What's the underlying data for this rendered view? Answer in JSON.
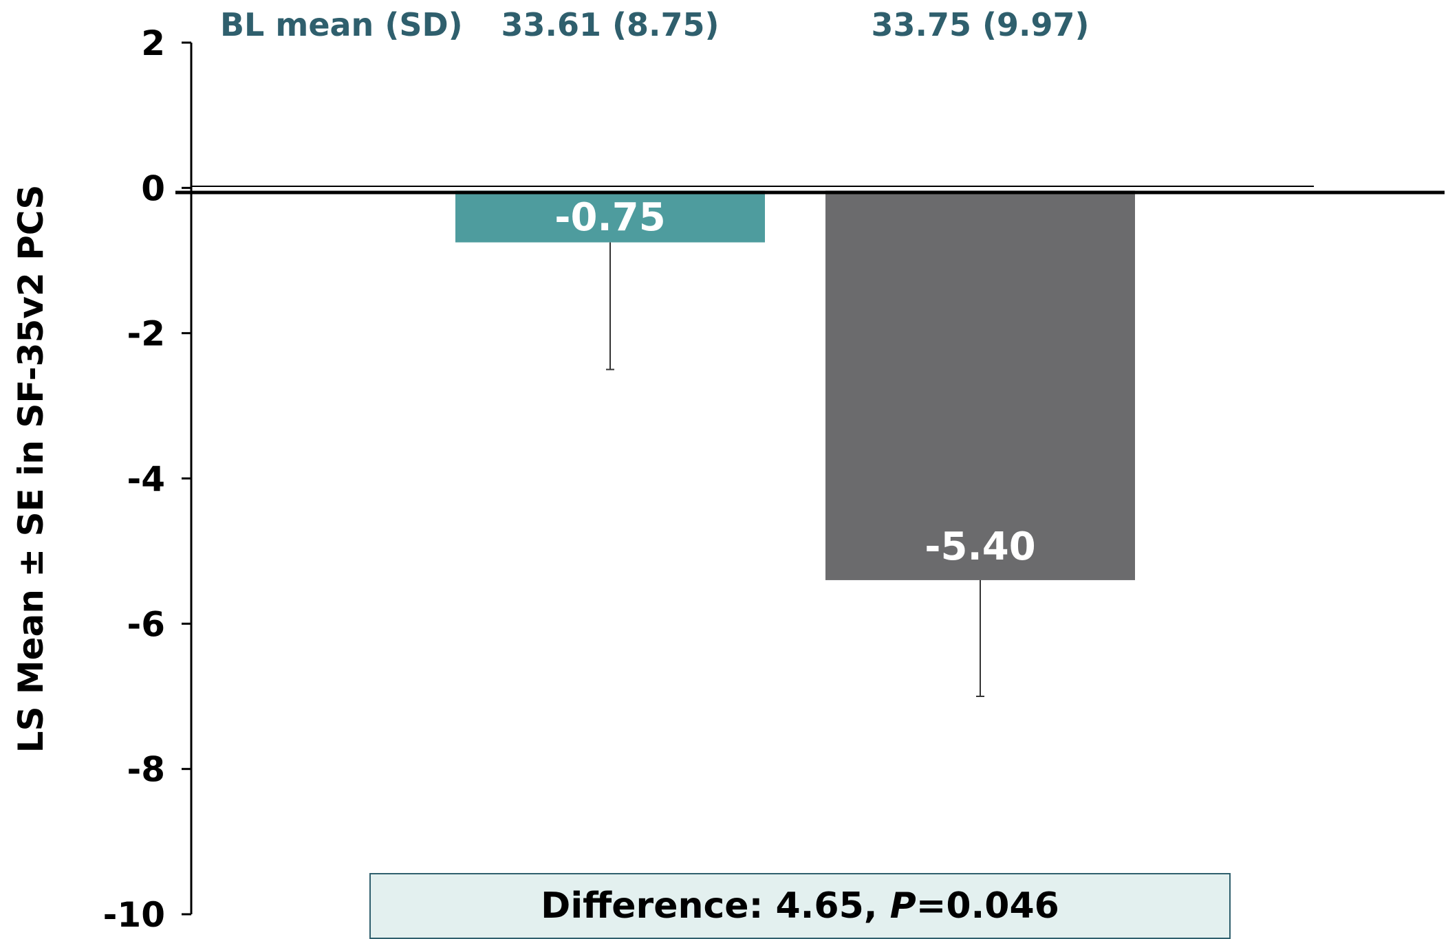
{
  "chart_data": {
    "type": "bar",
    "categories": [
      "",
      ""
    ],
    "values": [
      -0.75,
      -5.4
    ],
    "error_se": [
      1.75,
      1.6
    ],
    "colors": [
      "#4e9c9e",
      "#6b6b6d"
    ],
    "data_labels": [
      "-0.75",
      "-5.40"
    ],
    "ylabel": "LS Mean ± SE in SF-35v2 PCS",
    "ylim": [
      -10,
      2
    ],
    "yticks": [
      2,
      0,
      -2,
      -4,
      -6,
      -8,
      -10
    ],
    "ytick_labels": [
      "2",
      "0",
      "-2",
      "-4",
      "-6",
      "-8",
      "-10"
    ],
    "grid": false,
    "baseline": {
      "label": "BL mean (SD)",
      "values": [
        "33.61 (8.75)",
        "33.75 (9.97)"
      ]
    },
    "annotation": {
      "prefix": "Difference: 4.65, ",
      "p_symbol": "P",
      "p_value": "=0.046"
    }
  }
}
